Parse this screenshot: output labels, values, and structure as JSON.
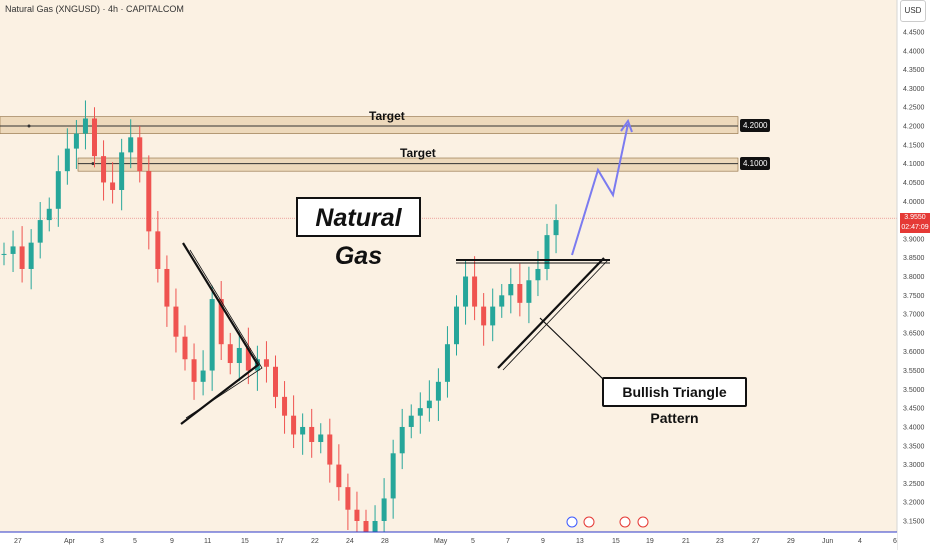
{
  "legend": "Natural Gas (XNGUSD) · 4h · CAPITALCOM",
  "currency": "USD",
  "title": "Natural Gas",
  "pattern_label": "Bullish Triangle Pattern",
  "target1_label": "Target",
  "target2_label": "Target",
  "tag_4200": "4.2000",
  "tag_4100": "4.1000",
  "current_price": "3.9550",
  "countdown": "02:47:09",
  "colors": {
    "up": "#26a69a",
    "down": "#ef5350",
    "zone": "#e2c49a",
    "projection": "#7b7bf0",
    "background": "#fbf1e3"
  },
  "chart_data": {
    "type": "candlestick",
    "title": "",
    "xlabel": "",
    "ylabel": "",
    "ylim": [
      3.13,
      4.5
    ],
    "y_ticks": [
      "4.4500",
      "4.4000",
      "4.3500",
      "4.3000",
      "4.2500",
      "4.2000",
      "4.1500",
      "4.1000",
      "4.0500",
      "4.0000",
      "3.9500",
      "3.9000",
      "3.8500",
      "3.8000",
      "3.7500",
      "3.7000",
      "3.6500",
      "3.6000",
      "3.5500",
      "3.5000",
      "3.4500",
      "3.4000",
      "3.3500",
      "3.3000",
      "3.2500",
      "3.2000",
      "3.1500"
    ],
    "x_ticks": [
      "27",
      "Apr",
      "3",
      "5",
      "9",
      "11",
      "15",
      "17",
      "22",
      "24",
      "28",
      "May",
      "5",
      "7",
      "9",
      "13",
      "15",
      "19",
      "21",
      "23",
      "27",
      "29",
      "Jun",
      "4",
      "6"
    ],
    "closes": [
      3.86,
      3.88,
      3.82,
      3.89,
      3.95,
      3.98,
      4.08,
      4.14,
      4.18,
      4.22,
      4.12,
      4.05,
      4.03,
      4.13,
      4.17,
      4.08,
      3.92,
      3.82,
      3.72,
      3.64,
      3.58,
      3.52,
      3.55,
      3.74,
      3.62,
      3.57,
      3.61,
      3.55,
      3.58,
      3.56,
      3.48,
      3.43,
      3.38,
      3.4,
      3.36,
      3.38,
      3.3,
      3.24,
      3.18,
      3.15,
      3.12,
      3.15,
      3.21,
      3.33,
      3.4,
      3.43,
      3.45,
      3.47,
      3.52,
      3.62,
      3.72,
      3.8,
      3.72,
      3.67,
      3.72,
      3.75,
      3.78,
      3.73,
      3.79,
      3.82,
      3.91,
      3.95
    ],
    "target_levels": [
      4.2,
      4.1
    ],
    "current_price": 3.955,
    "annotations": [
      "Natural Gas",
      "Target",
      "Target",
      "Bullish Triangle Pattern"
    ]
  }
}
